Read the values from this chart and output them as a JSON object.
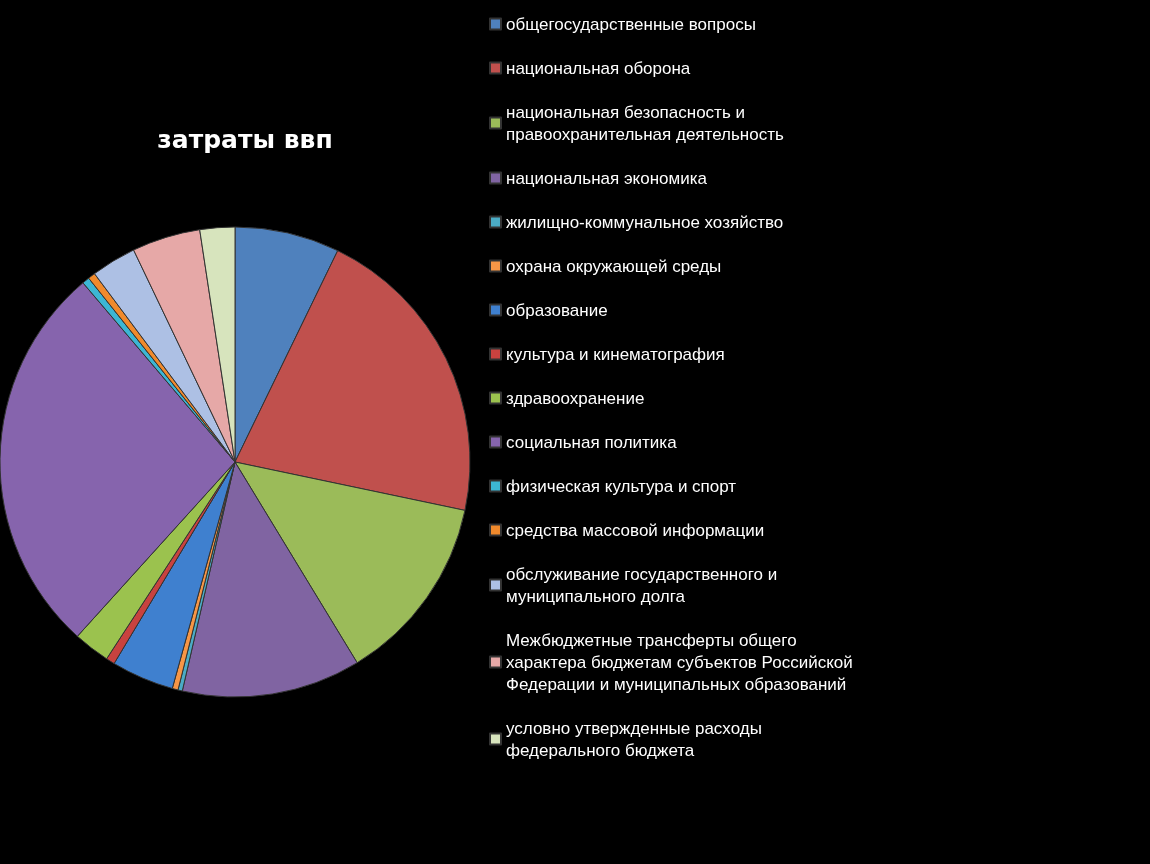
{
  "chart_data": {
    "type": "pie",
    "title": "затраты ввп",
    "legend": "right",
    "categories": [
      "общегосударственные вопросы",
      "национальная оборона",
      "национальная безопасность и правоохранительная деятельность",
      "национальная экономика",
      "жилищно-коммунальное хозяйство",
      "охрана окружающей среды",
      "образование",
      "культура и кинематография",
      "здравоохранение",
      "социальная политика",
      "физическая культура и спорт",
      "средства массовой информации",
      "обслуживание государственного и муниципального долга",
      "Межбюджетные трансферты общего характера бюджетам субъектов Российской Федерации и муниципальных образований",
      "условно утвержденные расходы федерального бюджета"
    ],
    "values": [
      7.2,
      21.1,
      13.0,
      12.3,
      0.3,
      0.4,
      4.3,
      0.6,
      2.5,
      27.1,
      0.5,
      0.5,
      3.1,
      4.7,
      2.4
    ],
    "colors": [
      "#4f81bd",
      "#c0504d",
      "#9bbb59",
      "#8064a2",
      "#4bacc6",
      "#f79646",
      "#3f80cf",
      "#c8423f",
      "#9bc24e",
      "#8664ad",
      "#3cb6d4",
      "#f08a2c",
      "#adc0e4",
      "#e6a8a7",
      "#d7e4bd"
    ]
  }
}
